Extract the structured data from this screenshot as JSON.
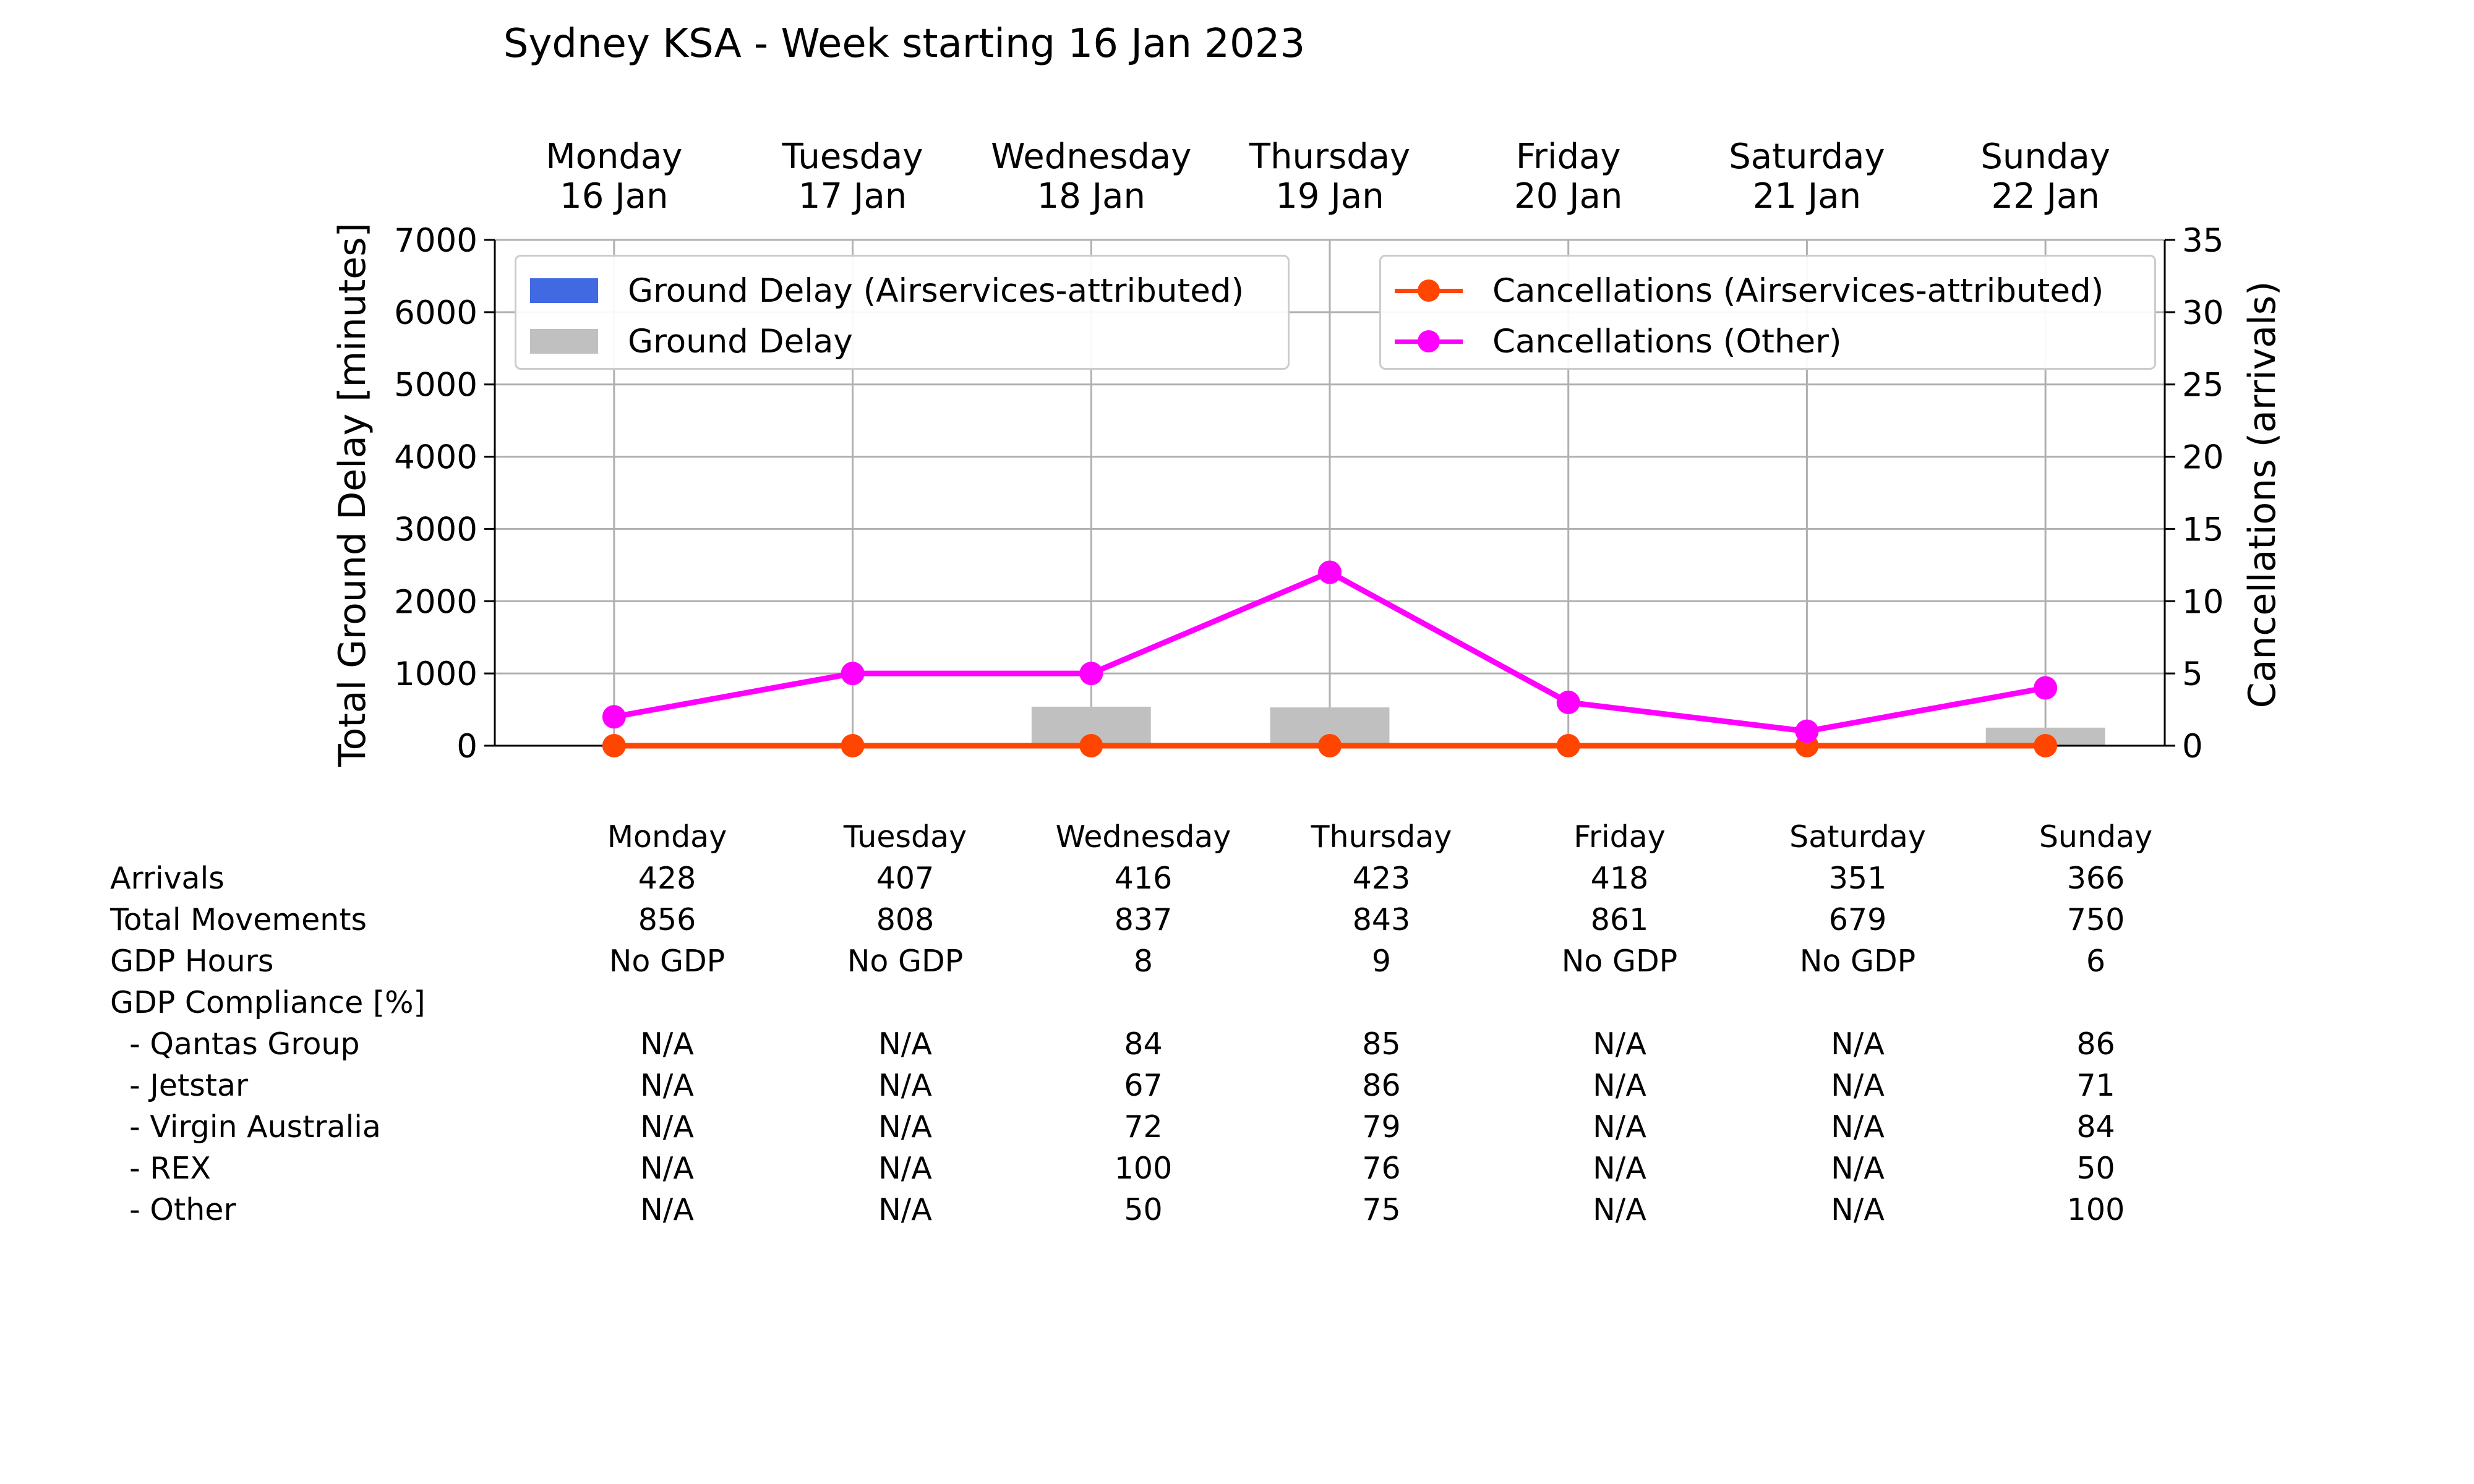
{
  "chart_data": {
    "type": "bar",
    "title": "Sydney KSA - Week starting 16 Jan 2023",
    "categories": [
      "Monday\n16 Jan",
      "Tuesday\n17 Jan",
      "Wednesday\n18 Jan",
      "Thursday\n19 Jan",
      "Friday\n20 Jan",
      "Saturday\n21 Jan",
      "Sunday\n22 Jan"
    ],
    "ylabel": "Total Ground Delay [minutes]",
    "y2label": "Cancellations (arrivals)",
    "ylim": [
      0,
      7000
    ],
    "y2lim": [
      0,
      35
    ],
    "yticks": [
      0,
      1000,
      2000,
      3000,
      4000,
      5000,
      6000,
      7000
    ],
    "y2ticks": [
      0,
      5,
      10,
      15,
      20,
      25,
      30,
      35
    ],
    "grid": true,
    "series": [
      {
        "name": "Ground Delay (Airservices-attributed)",
        "kind": "bar",
        "axis": "left",
        "color": "#4169e1",
        "values": [
          0,
          0,
          0,
          0,
          0,
          0,
          0
        ]
      },
      {
        "name": "Ground Delay",
        "kind": "bar",
        "axis": "left",
        "color": "#c0c0c0",
        "values": [
          0,
          0,
          540,
          530,
          0,
          0,
          250
        ]
      },
      {
        "name": "Cancellations (Airservices-attributed)",
        "kind": "line",
        "axis": "right",
        "color": "#ff4500",
        "values": [
          0,
          0,
          0,
          0,
          0,
          0,
          0
        ]
      },
      {
        "name": "Cancellations (Other)",
        "kind": "line",
        "axis": "right",
        "color": "#ff00ff",
        "values": [
          2,
          5,
          5,
          12,
          3,
          1,
          4
        ]
      }
    ],
    "legend": [
      "top-left",
      "top-right"
    ]
  },
  "table": {
    "columns": [
      "Monday",
      "Tuesday",
      "Wednesday",
      "Thursday",
      "Friday",
      "Saturday",
      "Sunday"
    ],
    "rows": [
      {
        "label": "Arrivals",
        "values": [
          "428",
          "407",
          "416",
          "423",
          "418",
          "351",
          "366"
        ]
      },
      {
        "label": "Total Movements",
        "values": [
          "856",
          "808",
          "837",
          "843",
          "861",
          "679",
          "750"
        ]
      },
      {
        "label": "GDP Hours",
        "values": [
          "No GDP",
          "No GDP",
          "8",
          "9",
          "No GDP",
          "No GDP",
          "6"
        ]
      },
      {
        "label": "GDP Compliance [%]",
        "values": [
          "",
          "",
          "",
          "",
          "",
          "",
          ""
        ]
      },
      {
        "label": "  - Qantas Group",
        "values": [
          "N/A",
          "N/A",
          "84",
          "85",
          "N/A",
          "N/A",
          "86"
        ]
      },
      {
        "label": "  - Jetstar",
        "values": [
          "N/A",
          "N/A",
          "67",
          "86",
          "N/A",
          "N/A",
          "71"
        ]
      },
      {
        "label": "  - Virgin Australia",
        "values": [
          "N/A",
          "N/A",
          "72",
          "79",
          "N/A",
          "N/A",
          "84"
        ]
      },
      {
        "label": "  - REX",
        "values": [
          "N/A",
          "N/A",
          "100",
          "76",
          "N/A",
          "N/A",
          "50"
        ]
      },
      {
        "label": "  - Other",
        "values": [
          "N/A",
          "N/A",
          "50",
          "75",
          "N/A",
          "N/A",
          "100"
        ]
      }
    ]
  }
}
